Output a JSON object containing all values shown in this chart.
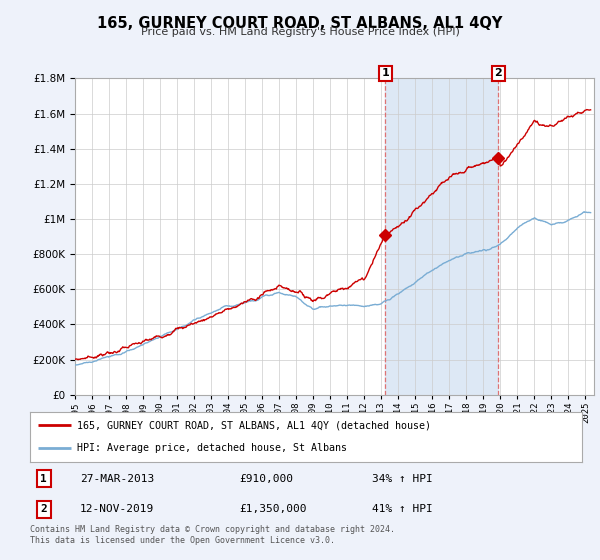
{
  "title": "165, GURNEY COURT ROAD, ST ALBANS, AL1 4QY",
  "subtitle": "Price paid vs. HM Land Registry's House Price Index (HPI)",
  "legend_property": "165, GURNEY COURT ROAD, ST ALBANS, AL1 4QY (detached house)",
  "legend_hpi": "HPI: Average price, detached house, St Albans",
  "sale1_date": "27-MAR-2013",
  "sale1_price": "£910,000",
  "sale1_hpi": "34% ↑ HPI",
  "sale1_year": 2013.23,
  "sale1_value": 910000,
  "sale2_date": "12-NOV-2019",
  "sale2_price": "£1,350,000",
  "sale2_hpi": "41% ↑ HPI",
  "sale2_year": 2019.87,
  "sale2_value": 1350000,
  "footer": "Contains HM Land Registry data © Crown copyright and database right 2024.\nThis data is licensed under the Open Government Licence v3.0.",
  "ylim": [
    0,
    1800000
  ],
  "xlim": [
    1995.0,
    2025.5
  ],
  "background_color": "#eef2fa",
  "plot_bg_color": "#ffffff",
  "shaded_color": "#dde8f5",
  "red_color": "#cc0000",
  "blue_color": "#7aadd4",
  "vline_color": "#dd6666",
  "grid_color": "#cccccc"
}
